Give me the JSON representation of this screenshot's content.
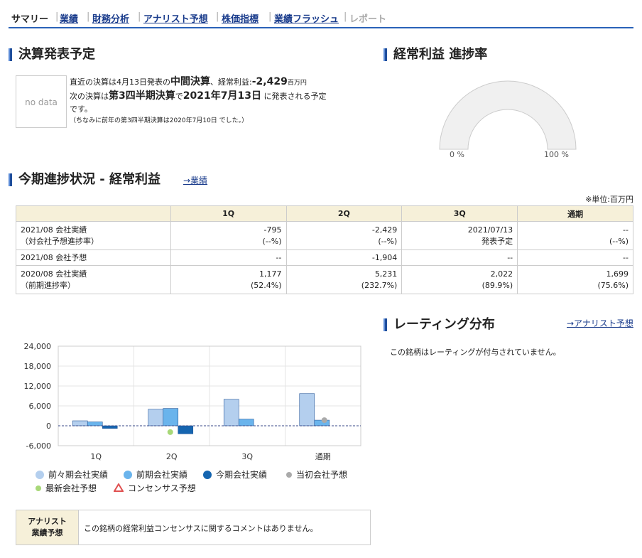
{
  "nav": {
    "items": [
      {
        "label": "サマリー",
        "state": "active"
      },
      {
        "label": "業績",
        "state": "link"
      },
      {
        "label": "財務分析",
        "state": "link"
      },
      {
        "label": "アナリスト予想",
        "state": "link"
      },
      {
        "label": "株価指標",
        "state": "link"
      },
      {
        "label": "業績フラッシュ",
        "state": "link"
      },
      {
        "label": "レポート",
        "state": "disabled"
      }
    ]
  },
  "schedule": {
    "heading": "決算発表予定",
    "image_placeholder": "no data",
    "l1a": "直近の決算は4月13日発表の",
    "l1b": "中間決算",
    "l1c": "、経常利益:",
    "l1d": "-2,429",
    "l1e": "百万円",
    "l2a": "次の決算は",
    "l2b": "第3四半期決算",
    "l2c": "で",
    "l2d": "2021年7月13日",
    "l2e": " に発表される予定",
    "l3": "です。",
    "l4": "（ちなみに前年の第3四半期決算は2020年7月10日 でした。）"
  },
  "gauge": {
    "heading": "経常利益 進捗率",
    "min_label": "0 %",
    "max_label": "100 %",
    "value_pct": 0
  },
  "progress": {
    "heading": "今期進捗状況 - 経常利益",
    "link": "→業績",
    "unit": "※単位:百万円",
    "columns": [
      "",
      "1Q",
      "2Q",
      "3Q",
      "通期"
    ],
    "rows": [
      {
        "label1": "2021/08 会社実績",
        "label2": "（対会社予想進捗率）",
        "c": [
          [
            "-795",
            "(--%)"
          ],
          [
            "-2,429",
            "(--%)"
          ],
          [
            "2021/07/13",
            "発表予定"
          ],
          [
            "--",
            "(--%)"
          ]
        ]
      },
      {
        "label1": "2021/08 会社予想",
        "label2": "",
        "c": [
          [
            "--",
            ""
          ],
          [
            "-1,904",
            ""
          ],
          [
            "--",
            ""
          ],
          [
            "--",
            ""
          ]
        ]
      },
      {
        "label1": "2020/08 会社実績",
        "label2": "（前期進捗率）",
        "c": [
          [
            "1,177",
            "(52.4%)"
          ],
          [
            "5,231",
            "(232.7%)"
          ],
          [
            "2,022",
            "(89.9%)"
          ],
          [
            "1,699",
            "(75.6%)"
          ]
        ]
      }
    ]
  },
  "chart_data": {
    "type": "bar",
    "categories": [
      "1Q",
      "2Q",
      "3Q",
      "通期"
    ],
    "ylim": [
      -6000,
      24000
    ],
    "yticks": [
      "24,000",
      "18,000",
      "12,000",
      "6,000",
      "0",
      "-6,000"
    ],
    "series": [
      {
        "name": "前々期会社実績",
        "color": "#b4cfee",
        "values": [
          1500,
          5000,
          8000,
          9700
        ]
      },
      {
        "name": "前期会社実績",
        "color": "#6ab4ec",
        "values": [
          1177,
          5231,
          2022,
          1699
        ]
      },
      {
        "name": "今期会社実績",
        "color": "#1565b0",
        "values": [
          -795,
          -2429,
          null,
          null
        ]
      }
    ],
    "markers": [
      {
        "name": "当初会社予想",
        "color": "#aaaaaa",
        "shape": "circle",
        "values": [
          null,
          null,
          null,
          1699
        ]
      },
      {
        "name": "最新会社予想",
        "color": "#a8d878",
        "shape": "circle",
        "values": [
          null,
          -1904,
          null,
          null
        ]
      },
      {
        "name": "コンセンサス予想",
        "color": "#e05050",
        "shape": "triangle",
        "values": [
          null,
          null,
          null,
          null
        ]
      }
    ]
  },
  "rating": {
    "heading": "レーティング分布",
    "link": "→アナリスト予想",
    "text": "この銘柄はレーティングが付与されていません。"
  },
  "analyst": {
    "head1": "アナリスト",
    "head2": "業績予想",
    "text": "この銘柄の経常利益コンセンサスに関するコメントはありません。"
  }
}
